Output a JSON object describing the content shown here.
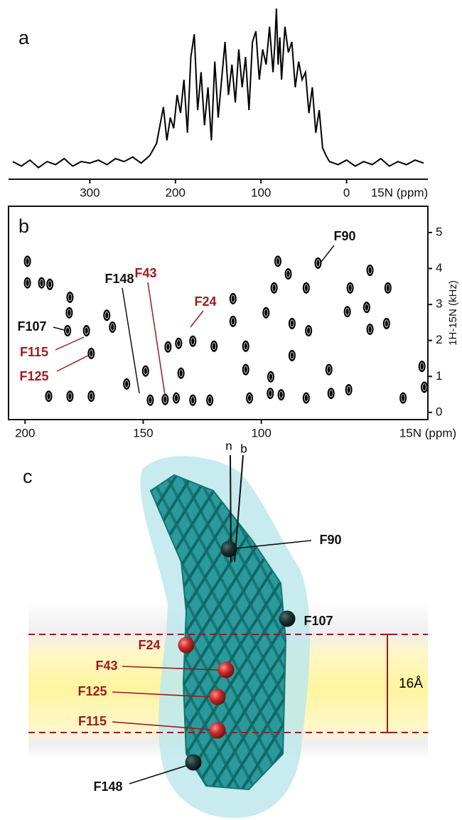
{
  "chart_data": [
    {
      "type": "line",
      "panel_label": "a",
      "x_label": "15N (ppm)",
      "color": "#000000",
      "x": [
        390,
        380,
        370,
        360,
        350,
        340,
        330,
        320,
        310,
        300,
        290,
        280,
        270,
        260,
        250,
        240,
        230,
        222,
        218,
        214,
        210,
        206,
        202,
        198,
        194,
        190,
        186,
        182,
        178,
        174,
        170,
        166,
        162,
        158,
        154,
        150,
        146,
        142,
        138,
        134,
        130,
        126,
        122,
        118,
        114,
        110,
        106,
        102,
        98,
        94,
        90,
        86,
        84,
        82,
        80,
        78,
        76,
        72,
        68,
        64,
        60,
        56,
        52,
        48,
        44,
        40,
        36,
        32,
        28,
        24,
        20,
        10,
        0,
        -10,
        -20,
        -30,
        -40,
        -50,
        -60,
        -70,
        -80,
        -90
      ],
      "values": [
        6,
        3,
        7,
        2,
        6,
        4,
        8,
        3,
        6,
        5,
        7,
        4,
        8,
        6,
        9,
        5,
        10,
        18,
        30,
        42,
        20,
        35,
        28,
        50,
        38,
        60,
        25,
        75,
        90,
        40,
        65,
        30,
        55,
        20,
        72,
        35,
        60,
        85,
        50,
        70,
        45,
        80,
        55,
        75,
        40,
        85,
        92,
        60,
        80,
        70,
        95,
        65,
        82,
        107,
        70,
        88,
        60,
        95,
        78,
        85,
        55,
        72,
        60,
        65,
        38,
        55,
        25,
        40,
        15,
        10,
        6,
        4,
        7,
        3,
        6,
        4,
        8,
        3,
        6,
        4,
        7,
        5
      ],
      "xlim": [
        395,
        -95
      ],
      "xticks": [
        300,
        200,
        100,
        0
      ]
    },
    {
      "type": "scatter",
      "panel_label": "b",
      "x_label": "15N (ppm)",
      "y_label": "1H-15N (kHz)",
      "color": "#000000",
      "x": [
        199,
        199,
        193,
        189.5,
        181,
        181.3,
        182,
        174,
        172,
        165.4,
        190,
        181,
        172,
        157,
        149,
        140.7,
        147,
        136,
        139.5,
        135,
        129,
        120,
        121.8,
        129,
        134,
        112,
        112,
        106.6,
        105,
        106.6,
        98,
        96,
        96.2,
        94.6,
        88.6,
        93,
        87,
        87,
        80,
        81,
        76,
        70.5,
        71.4,
        62.4,
        63.6,
        55.4,
        54,
        46.4,
        54,
        47,
        63,
        40,
        31,
        32,
        81,
        91.6,
        163
      ],
      "values": [
        4.2,
        3.6,
        3.6,
        3.56,
        3.2,
        2.77,
        2.27,
        2.27,
        1.64,
        2.7,
        0.45,
        0.45,
        0.45,
        0.79,
        1.15,
        0.36,
        0.34,
        0.4,
        1.82,
        1.92,
        1.98,
        1.84,
        0.34,
        0.34,
        1.09,
        2.53,
        3.16,
        1.84,
        0.4,
        1.19,
        2.77,
        0.99,
        0.53,
        3.46,
        3.85,
        4.2,
        2.47,
        1.58,
        2.27,
        3.46,
        4.15,
        0.53,
        1.19,
        3.46,
        2.8,
        2.92,
        3.95,
        3.46,
        2.31,
        2.47,
        0.63,
        0.4,
        0.7,
        1.28,
        0.4,
        0.49,
        2.37
      ],
      "xlim": [
        207,
        29.5
      ],
      "xticks": [
        200,
        150,
        100
      ],
      "ylim": [
        -0.2,
        5.73
      ],
      "yticks": [
        0,
        1,
        2,
        3,
        4,
        5
      ],
      "annotations": [
        {
          "text": "F90",
          "color": "#111111"
        },
        {
          "text": "F43",
          "color": "#9b1b1b"
        },
        {
          "text": "F148",
          "color": "#111111"
        },
        {
          "text": "F24",
          "color": "#9b1b1b"
        },
        {
          "text": "F107",
          "color": "#111111"
        },
        {
          "text": "F115",
          "color": "#9b1b1b"
        },
        {
          "text": "F125",
          "color": "#9b1b1b"
        }
      ]
    }
  ],
  "diagram": {
    "panel_label": "c",
    "axis_n": "n",
    "axis_b": "b",
    "distance": "16Å",
    "residues": [
      {
        "text": "F90",
        "color": "#111111"
      },
      {
        "text": "F107",
        "color": "#111111"
      },
      {
        "text": "F24",
        "color": "#9b1b1b"
      },
      {
        "text": "F43",
        "color": "#9b1b1b"
      },
      {
        "text": "F125",
        "color": "#9b1b1b"
      },
      {
        "text": "F115",
        "color": "#9b1b1b"
      },
      {
        "text": "F148",
        "color": "#111111"
      }
    ]
  }
}
